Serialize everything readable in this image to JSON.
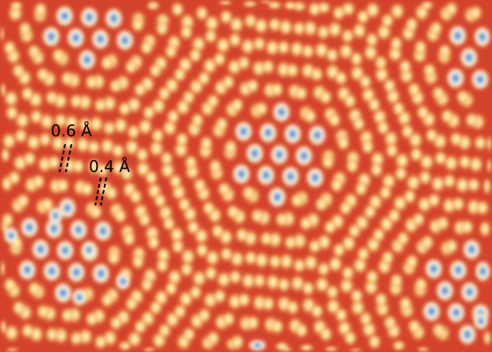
{
  "image": {
    "colormap": [
      "#c8301f",
      "#e0603a",
      "#f5c070",
      "#fff4c0",
      "#5a8ec8"
    ],
    "annotations": [
      {
        "label": "0.6 Å"
      },
      {
        "label": "0.4 Å"
      }
    ]
  }
}
